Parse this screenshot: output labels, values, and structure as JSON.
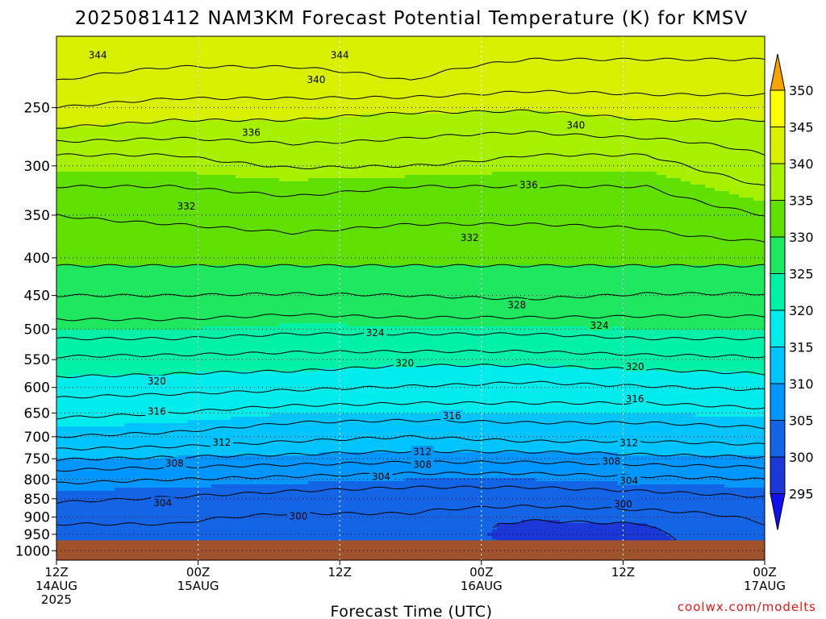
{
  "chart_data": {
    "type": "heatmap",
    "title": "2025081412 NAM3KM Forecast Potential Temperature (K) for KMSV",
    "xlabel": "Forecast Time (UTC)",
    "ylabel": "",
    "y_scale": "log",
    "y_reversed": true,
    "ylim": [
      1030,
      200
    ],
    "y_ticks": [
      250,
      300,
      350,
      400,
      450,
      500,
      550,
      600,
      650,
      700,
      750,
      800,
      850,
      900,
      950,
      1000
    ],
    "x_ticks": [
      {
        "hour": 0,
        "line1": "12Z",
        "line2": "14AUG",
        "line3": "2025"
      },
      {
        "hour": 12,
        "line1": "00Z",
        "line2": "15AUG",
        "line3": ""
      },
      {
        "hour": 24,
        "line1": "12Z",
        "line2": "",
        "line3": ""
      },
      {
        "hour": 36,
        "line1": "00Z",
        "line2": "16AUG",
        "line3": ""
      },
      {
        "hour": 48,
        "line1": "12Z",
        "line2": "",
        "line3": ""
      },
      {
        "hour": 60,
        "line1": "00Z",
        "line2": "17AUG",
        "line3": ""
      }
    ],
    "grid": true,
    "colorbar": {
      "labels": [
        "350",
        "345",
        "340",
        "335",
        "330",
        "325",
        "320",
        "315",
        "310",
        "305",
        "300",
        "295"
      ],
      "colors": [
        "#f5a400",
        "#ffff00",
        "#d8f000",
        "#a6f000",
        "#5fe000",
        "#1fe860",
        "#00f0a8",
        "#00ecec",
        "#00c4ff",
        "#0096ff",
        "#1464e6",
        "#1b38d6",
        "#1010ee"
      ]
    },
    "surface_pressure_hpa": 968,
    "surface_color": "#a0522d",
    "rows_pressure_hpa": [
      200,
      230,
      260,
      290,
      320,
      350,
      380,
      410,
      440,
      470,
      500,
      530,
      560,
      590,
      620,
      650,
      680,
      710,
      740,
      770,
      800,
      830,
      860,
      890,
      920,
      950,
      968
    ],
    "theta_K": [
      [
        345.0,
        345.0,
        345.0,
        345.0,
        345.0,
        345.0,
        345.0
      ],
      [
        344.0,
        343.5,
        343.5,
        344.0,
        343.0,
        343.0,
        343.0
      ],
      [
        341.0,
        340.0,
        340.0,
        339.0,
        339.0,
        340.0,
        340.0
      ],
      [
        336.0,
        336.0,
        337.0,
        337.0,
        336.0,
        336.0,
        338.0
      ],
      [
        334.0,
        334.0,
        334.5,
        334.0,
        334.0,
        334.0,
        336.0
      ],
      [
        332.0,
        332.5,
        333.0,
        332.5,
        332.5,
        332.5,
        334.0
      ],
      [
        331.0,
        331.0,
        331.5,
        331.0,
        331.0,
        331.5,
        332.0
      ],
      [
        330.0,
        330.0,
        330.0,
        330.0,
        330.0,
        330.0,
        330.0
      ],
      [
        328.5,
        328.5,
        328.5,
        328.5,
        329.0,
        328.5,
        328.5
      ],
      [
        327.0,
        327.0,
        326.5,
        327.0,
        327.0,
        326.5,
        326.5
      ],
      [
        325.0,
        325.0,
        324.5,
        324.5,
        324.5,
        325.0,
        325.0
      ],
      [
        323.0,
        323.0,
        322.5,
        322.5,
        322.5,
        323.0,
        323.0
      ],
      [
        321.0,
        320.5,
        320.5,
        320.0,
        320.0,
        320.5,
        321.0
      ],
      [
        319.5,
        319.5,
        319.0,
        318.5,
        318.0,
        318.5,
        319.0
      ],
      [
        318.0,
        317.5,
        317.0,
        316.5,
        316.5,
        316.5,
        317.0
      ],
      [
        316.5,
        316.0,
        315.0,
        315.0,
        315.0,
        315.0,
        315.5
      ],
      [
        315.0,
        314.5,
        313.5,
        313.0,
        313.5,
        313.5,
        314.0
      ],
      [
        313.5,
        313.0,
        312.0,
        311.5,
        312.0,
        312.0,
        312.5
      ],
      [
        311.0,
        310.5,
        310.0,
        309.5,
        309.5,
        310.0,
        310.5
      ],
      [
        308.5,
        308.0,
        307.5,
        307.0,
        307.0,
        307.5,
        308.0
      ],
      [
        306.5,
        306.0,
        305.5,
        305.0,
        305.0,
        305.5,
        306.0
      ],
      [
        305.0,
        304.5,
        304.0,
        303.5,
        303.5,
        304.0,
        304.5
      ],
      [
        304.0,
        303.5,
        303.0,
        302.5,
        302.5,
        303.0,
        303.5
      ],
      [
        303.0,
        302.5,
        302.0,
        302.0,
        301.0,
        301.5,
        302.5
      ],
      [
        302.0,
        302.0,
        301.0,
        301.5,
        299.5,
        300.0,
        302.0
      ],
      [
        302.0,
        300.5,
        301.5,
        302.0,
        299.0,
        299.5,
        302.5
      ],
      [
        302.5,
        300.0,
        302.0,
        302.5,
        299.0,
        299.0,
        303.0
      ]
    ],
    "contour_labels": [
      {
        "text": "344",
        "hour": 3.5,
        "p": 212
      },
      {
        "text": "344",
        "hour": 24,
        "p": 212
      },
      {
        "text": "340",
        "hour": 22,
        "p": 229
      },
      {
        "text": "340",
        "hour": 44,
        "p": 264
      },
      {
        "text": "336",
        "hour": 16.5,
        "p": 270
      },
      {
        "text": "336",
        "hour": 40,
        "p": 318
      },
      {
        "text": "332",
        "hour": 11,
        "p": 340
      },
      {
        "text": "332",
        "hour": 35,
        "p": 375
      },
      {
        "text": "328",
        "hour": 39,
        "p": 463
      },
      {
        "text": "324",
        "hour": 27,
        "p": 505
      },
      {
        "text": "324",
        "hour": 46,
        "p": 494
      },
      {
        "text": "320",
        "hour": 29.5,
        "p": 555
      },
      {
        "text": "320",
        "hour": 49,
        "p": 562
      },
      {
        "text": "320",
        "hour": 8.5,
        "p": 588
      },
      {
        "text": "316",
        "hour": 8.5,
        "p": 646
      },
      {
        "text": "316",
        "hour": 33.5,
        "p": 655
      },
      {
        "text": "316",
        "hour": 49,
        "p": 621
      },
      {
        "text": "312",
        "hour": 14,
        "p": 712
      },
      {
        "text": "312",
        "hour": 31,
        "p": 733
      },
      {
        "text": "312",
        "hour": 48.5,
        "p": 713
      },
      {
        "text": "308",
        "hour": 10,
        "p": 760
      },
      {
        "text": "308",
        "hour": 31,
        "p": 763
      },
      {
        "text": "308",
        "hour": 47,
        "p": 755
      },
      {
        "text": "304",
        "hour": 27.5,
        "p": 792
      },
      {
        "text": "304",
        "hour": 48.5,
        "p": 802
      },
      {
        "text": "304",
        "hour": 9,
        "p": 860
      },
      {
        "text": "300",
        "hour": 20.5,
        "p": 897
      },
      {
        "text": "300",
        "hour": 48,
        "p": 863
      }
    ]
  },
  "credit": "coolwx.com/modelts"
}
